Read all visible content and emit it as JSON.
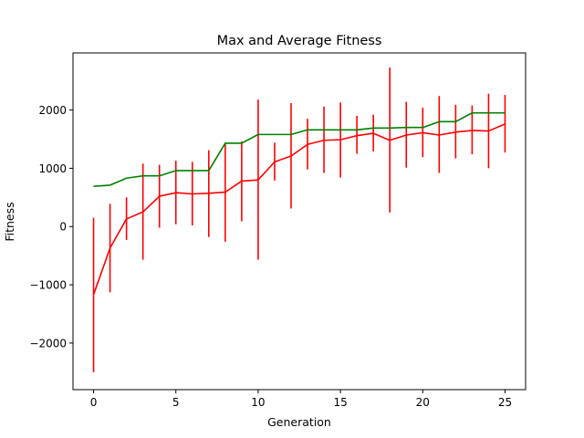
{
  "chart_data": {
    "type": "line",
    "title": "Max and Average Fitness",
    "xlabel": "Generation",
    "ylabel": "Fitness",
    "xlim": [
      -1.25,
      26.25
    ],
    "ylim": [
      -2800,
      2980
    ],
    "xticks": [
      0,
      5,
      10,
      15,
      20,
      25
    ],
    "yticks": [
      -2000,
      -1000,
      0,
      1000,
      2000
    ],
    "xtick_labels": [
      "0",
      "5",
      "10",
      "15",
      "20",
      "25"
    ],
    "ytick_labels": [
      "−2000",
      "−1000",
      "0",
      "1000",
      "2000"
    ],
    "grid": false,
    "x": [
      0,
      1,
      2,
      3,
      4,
      5,
      6,
      7,
      8,
      9,
      10,
      11,
      12,
      13,
      14,
      15,
      16,
      17,
      18,
      19,
      20,
      21,
      22,
      23,
      24,
      25
    ],
    "series": [
      {
        "color": "#008000",
        "values": [
          690,
          710,
          830,
          870,
          870,
          960,
          960,
          960,
          1430,
          1430,
          1580,
          1580,
          1580,
          1660,
          1660,
          1660,
          1660,
          1690,
          1690,
          1700,
          1700,
          1800,
          1800,
          1950,
          1950,
          1950
        ]
      },
      {
        "color": "#ff0000",
        "values": [
          -1170,
          -370,
          130,
          250,
          520,
          580,
          560,
          570,
          590,
          780,
          800,
          1110,
          1210,
          1410,
          1480,
          1490,
          1560,
          1600,
          1480,
          1570,
          1610,
          1570,
          1620,
          1650,
          1640,
          1760
        ],
        "error_low": [
          -2500,
          -1130,
          -230,
          -570,
          -20,
          40,
          20,
          -180,
          -260,
          90,
          -570,
          790,
          310,
          980,
          920,
          840,
          1250,
          1290,
          240,
          1010,
          1190,
          920,
          1170,
          1240,
          1000,
          1270
        ],
        "error_high": [
          150,
          390,
          500,
          1080,
          1060,
          1130,
          1110,
          1310,
          1420,
          1460,
          2180,
          1440,
          2120,
          1850,
          2060,
          2130,
          1900,
          1920,
          2730,
          2140,
          2040,
          2240,
          2090,
          2080,
          2280,
          2260
        ]
      }
    ]
  }
}
